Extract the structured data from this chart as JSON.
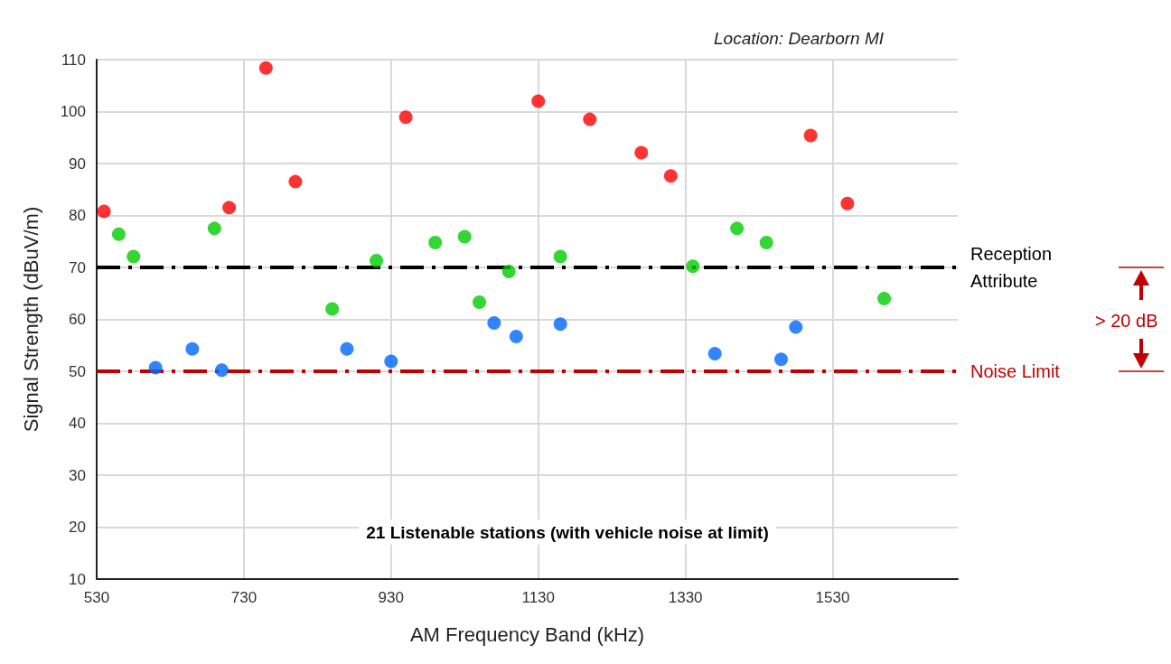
{
  "chart_data": {
    "type": "scatter",
    "xlabel": "AM Frequency Band (kHz)",
    "ylabel": "Signal Strength (dBuV/m)",
    "xlim": [
      530,
      1700
    ],
    "xticks": [
      530,
      730,
      930,
      1130,
      1330,
      1530
    ],
    "ylim": [
      10,
      110
    ],
    "yticks": [
      10,
      20,
      30,
      40,
      50,
      60,
      70,
      80,
      90,
      100,
      110
    ],
    "grid": true,
    "marker": "circle",
    "series": [
      {
        "color": "#ff0000",
        "x": [
          540,
          710,
          760,
          800,
          950,
          1130,
          1200,
          1270,
          1310,
          1500,
          1550
        ],
        "values": [
          80.8,
          81.5,
          108.4,
          86.5,
          98.9,
          102,
          98.5,
          92.1,
          87.6,
          95.4,
          82.3
        ]
      },
      {
        "color": "#00cc00",
        "x": [
          560,
          580,
          690,
          850,
          910,
          990,
          1030,
          1050,
          1090,
          1160,
          1340,
          1400,
          1440,
          1600
        ],
        "values": [
          76.4,
          72.1,
          77.5,
          62,
          71.3,
          74.8,
          75.9,
          63.3,
          69.2,
          72.1,
          70.2,
          77.5,
          74.8,
          64
        ]
      },
      {
        "color": "#0066ff",
        "x": [
          610,
          660,
          700,
          870,
          930,
          1070,
          1100,
          1160,
          1370,
          1460,
          1480
        ],
        "values": [
          50.7,
          54.3,
          50.2,
          54.3,
          51.9,
          59.3,
          56.7,
          59.1,
          53.4,
          52.3,
          58.5
        ]
      }
    ],
    "ref_lines": [
      {
        "axis": "y",
        "value": 70,
        "label": "Reception Attribute",
        "color": "#000000",
        "line_style": "dashed"
      },
      {
        "axis": "y",
        "value": 50,
        "label": "Noise Limit",
        "color": "#c00000",
        "line_style": "dashed"
      }
    ],
    "annotations": [
      "Location: Dearborn MI",
      "21 Listenable stations (with vehicle noise at limit)",
      "> 20 dB"
    ]
  }
}
